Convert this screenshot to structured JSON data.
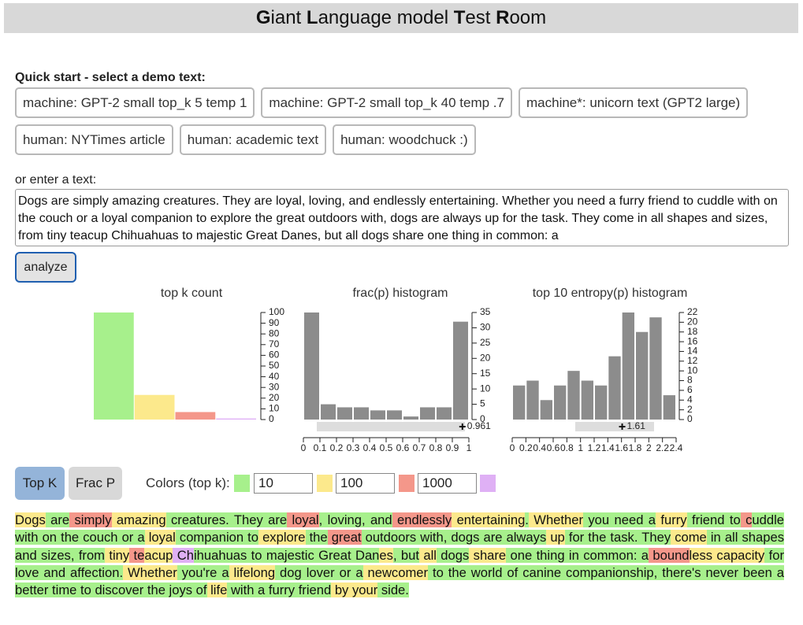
{
  "header": {
    "title": "Giant Language model Test Room"
  },
  "quick_start": {
    "label": "Quick start - select a demo text:",
    "buttons": [
      "machine: GPT-2 small top_k 5 temp 1",
      "machine: GPT-2 small top_k 40 temp .7",
      "machine*: unicorn text (GPT2 large)",
      "human: NYTimes article",
      "human: academic text",
      "human: woodchuck :)"
    ]
  },
  "input": {
    "label": "or enter a text:",
    "text": "Dogs are simply amazing creatures. They are loyal, loving, and endlessly entertaining. Whether you need a furry friend to cuddle with on the couch or a loyal companion to explore the great outdoors with, dogs are always up for the task. They come in all shapes and sizes, from tiny teacup Chihuahuas to majestic Great Danes, but all dogs share one thing in common: a",
    "button": "analyze"
  },
  "chart_data": [
    {
      "type": "bar",
      "title": "top k count",
      "categories": [
        null,
        null,
        null,
        null
      ],
      "values": [
        100,
        23,
        7,
        1
      ],
      "colors": [
        "#a7f08c",
        "#fce98c",
        "#f4978a",
        "#dfb0f5"
      ],
      "ylim": [
        0,
        100
      ],
      "yticks": [
        0,
        10,
        20,
        30,
        40,
        50,
        60,
        70,
        80,
        90,
        100
      ]
    },
    {
      "type": "histogram",
      "title": "frac(p) histogram",
      "bins": [
        0,
        0.1,
        0.2,
        0.3,
        0.4,
        0.5,
        0.6,
        0.7,
        0.8,
        0.9,
        1
      ],
      "values": [
        35,
        5,
        4,
        4,
        3,
        3,
        1,
        4,
        4,
        32
      ],
      "color": "#8c8c8c",
      "xlim": [
        0,
        1
      ],
      "xticks": [
        0,
        0.1,
        0.2,
        0.3,
        0.4,
        0.5,
        0.6,
        0.7,
        0.8,
        0.9,
        1
      ],
      "ylim": [
        0,
        35
      ],
      "yticks": [
        0,
        5,
        10,
        15,
        20,
        25,
        30,
        35
      ],
      "marker": 0.961
    },
    {
      "type": "histogram",
      "title": "top 10 entropy(p) histogram",
      "bins": [
        0,
        0.2,
        0.4,
        0.6,
        0.8,
        1,
        1.2,
        1.4,
        1.6,
        1.8,
        2,
        2.2,
        2.4
      ],
      "values": [
        7,
        8,
        4,
        7,
        10,
        8,
        7,
        13,
        22,
        18,
        21,
        5
      ],
      "color": "#8c8c8c",
      "xlim": [
        0,
        2.4
      ],
      "xticks": [
        0,
        0.2,
        0.4,
        0.6,
        0.8,
        1,
        1.2,
        1.4,
        1.6,
        1.8,
        2,
        2.2,
        2.4
      ],
      "ylim": [
        0,
        22
      ],
      "yticks": [
        0,
        2,
        4,
        6,
        8,
        10,
        12,
        14,
        16,
        18,
        20,
        22
      ],
      "marker": 1.61
    }
  ],
  "controls": {
    "modes": [
      "Top K",
      "Frac P"
    ],
    "colors_label": "Colors (top k):",
    "thresholds": [
      10,
      100,
      1000
    ],
    "colors": [
      "#a7f08c",
      "#fce98c",
      "#f4978a",
      "#dfb0f5"
    ]
  },
  "token_text": {
    "tokens": [
      {
        "text": "Dogs",
        "bucket": 1
      },
      {
        "text": " are",
        "bucket": 0
      },
      {
        "text": " simply",
        "bucket": 2
      },
      {
        "text": " amazing",
        "bucket": 1
      },
      {
        "text": " creatures. They are",
        "bucket": 0
      },
      {
        "text": " loyal",
        "bucket": 2
      },
      {
        "text": ", loving, and",
        "bucket": 0
      },
      {
        "text": " endlessly",
        "bucket": 2
      },
      {
        "text": " entertaining",
        "bucket": 1
      },
      {
        "text": ".",
        "bucket": 0
      },
      {
        "text": " Whether",
        "bucket": 1
      },
      {
        "text": " you need a",
        "bucket": 0
      },
      {
        "text": " furry",
        "bucket": 1
      },
      {
        "text": " friend to",
        "bucket": 0
      },
      {
        "text": " c",
        "bucket": 2
      },
      {
        "text": "uddle with on the couch or a",
        "bucket": 0
      },
      {
        "text": " loyal",
        "bucket": 1
      },
      {
        "text": " companion to",
        "bucket": 0
      },
      {
        "text": " explore",
        "bucket": 1
      },
      {
        "text": " the",
        "bucket": 0
      },
      {
        "text": " great",
        "bucket": 2
      },
      {
        "text": " outdoors with, dogs are always",
        "bucket": 0
      },
      {
        "text": " up",
        "bucket": 1
      },
      {
        "text": " for the task. They",
        "bucket": 0
      },
      {
        "text": " come",
        "bucket": 1
      },
      {
        "text": " in all shapes and sizes, from",
        "bucket": 0
      },
      {
        "text": " tiny",
        "bucket": 1
      },
      {
        "text": " te",
        "bucket": 2
      },
      {
        "text": "acup",
        "bucket": 1
      },
      {
        "text": " Ch",
        "bucket": 3
      },
      {
        "text": "ihuahuas to majestic Great Dan",
        "bucket": 0
      },
      {
        "text": "es",
        "bucket": 1
      },
      {
        "text": ", but",
        "bucket": 0
      },
      {
        "text": " all",
        "bucket": 1
      },
      {
        "text": " dogs",
        "bucket": 0
      },
      {
        "text": " share",
        "bucket": 1
      },
      {
        "text": " one thing in common: a",
        "bucket": 0
      },
      {
        "text": " bound",
        "bucket": 2
      },
      {
        "text": "less capacity",
        "bucket": 1
      },
      {
        "text": " for love and affection.",
        "bucket": 0
      },
      {
        "text": " Whether",
        "bucket": 1
      },
      {
        "text": " you're a",
        "bucket": 0
      },
      {
        "text": " lifelong",
        "bucket": 1
      },
      {
        "text": " dog lover or a",
        "bucket": 0
      },
      {
        "text": " newcomer",
        "bucket": 1
      },
      {
        "text": " to the world of canine companionship, there's never been a better time to discover the joys of",
        "bucket": 0
      },
      {
        "text": " life",
        "bucket": 1
      },
      {
        "text": " with a furry friend",
        "bucket": 0
      },
      {
        "text": " by your",
        "bucket": 1
      },
      {
        "text": " side.",
        "bucket": 0
      }
    ]
  }
}
